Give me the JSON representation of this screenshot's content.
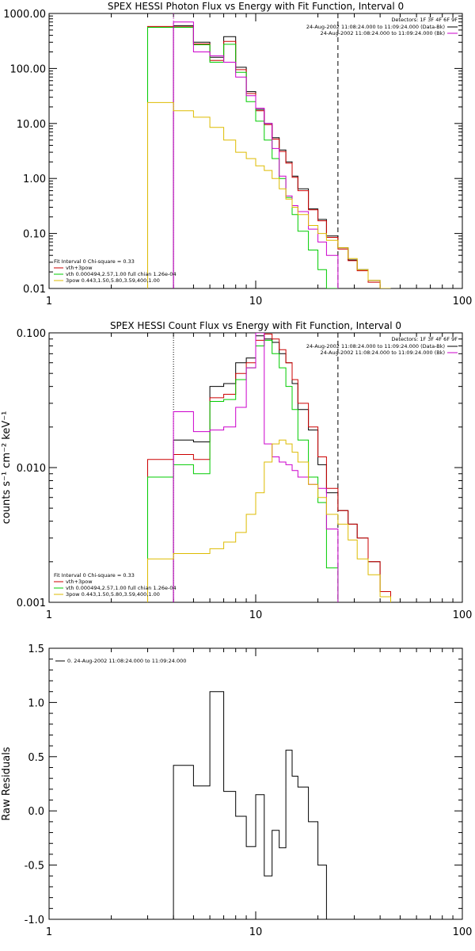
{
  "chart_data": [
    {
      "type": "line",
      "title": "SPEX HESSI Photon Flux vs Energy with Fit Function, Interval 0",
      "xlabel": "",
      "ylabel": "",
      "xscale": "log",
      "yscale": "log",
      "xlim": [
        1,
        100
      ],
      "ylim": [
        0.01,
        1000
      ],
      "x_ticks": [
        "1",
        "10",
        "100"
      ],
      "y_ticks": [
        "1000.00",
        "100.00",
        "10.00",
        "1.00",
        "0.10",
        "0.01"
      ],
      "edges": [
        3.0,
        4.0,
        5.0,
        6.0,
        7.0,
        8.0,
        9.0,
        10.0,
        11.0,
        12.0,
        13.0,
        14.0,
        15.0,
        16.0,
        18.0,
        20.0,
        22.0,
        25.0,
        28.0,
        31.0,
        35.0,
        40.0,
        45.0
      ],
      "vlines": [
        {
          "x": 4.0,
          "color": "#cc00cc",
          "dash": "dotted"
        },
        {
          "x": 25.0,
          "color": "#000000",
          "dash": "dashed"
        }
      ],
      "header": {
        "detectors": "Detectors: 1F 3F 4F 6F 9F",
        "line1": "24-Aug-2002 11:08:24.000 to 11:09:24.000 (Data-Bk)",
        "line2": "24-Aug-2002 11:08:24.000 to 11:09:24.000 (Bk)"
      },
      "header_colors": [
        "#000000",
        "#cc00cc"
      ],
      "legend_title": "Fit Interval 0   Chi-square = 0.33",
      "legend": [
        {
          "label": "vth+3pow",
          "color": "#cc0000"
        },
        {
          "label": "vth 0.000494,2.57,1.00   full chian 1.26e-04",
          "color": "#00cc00"
        },
        {
          "label": "3pow 0.443,1.50,5.80,3.59,400,1.00",
          "color": "#ddbb00"
        }
      ],
      "series": [
        {
          "color": "#000000",
          "values": [
            null,
            600,
            300,
            160,
            380,
            105,
            38,
            18,
            10,
            5.5,
            3.3,
            2.0,
            1.1,
            0.65,
            0.28,
            0.18,
            0.09,
            0.055,
            0.033,
            0.022,
            0.014,
            0.01
          ]
        },
        {
          "color": "#cc0000",
          "values": [
            580,
            570,
            280,
            140,
            310,
            95,
            35,
            17,
            9.5,
            5.2,
            3.1,
            1.9,
            1.05,
            0.6,
            0.27,
            0.17,
            0.085,
            0.052,
            0.032,
            0.021,
            0.013,
            0.009
          ]
        },
        {
          "color": "#00cc00",
          "values": [
            560,
            560,
            270,
            130,
            275,
            85,
            25,
            11,
            5.0,
            2.3,
            1.0,
            0.45,
            0.22,
            0.11,
            0.05,
            0.022,
            0.008,
            null,
            null,
            null,
            null,
            null
          ]
        },
        {
          "color": "#cc00cc",
          "values": [
            null,
            700,
            200,
            170,
            130,
            70,
            32,
            19,
            10,
            3.5,
            1.1,
            0.48,
            0.32,
            0.25,
            0.12,
            0.07,
            0.04,
            null,
            null,
            null,
            null,
            null
          ]
        },
        {
          "color": "#ddbb00",
          "values": [
            24,
            17,
            13,
            8.5,
            5.0,
            3.0,
            2.3,
            1.7,
            1.4,
            1.0,
            0.65,
            0.42,
            0.3,
            0.22,
            0.14,
            0.1,
            0.075,
            0.055,
            0.035,
            0.022,
            0.014,
            0.01
          ]
        }
      ]
    },
    {
      "type": "line",
      "title": "SPEX HESSI Count Flux vs Energy with Fit Function, Interval 0",
      "xlabel": "",
      "ylabel": "counts s⁻¹ cm⁻² keV⁻¹",
      "xscale": "log",
      "yscale": "log",
      "xlim": [
        1,
        100
      ],
      "ylim": [
        0.001,
        0.1
      ],
      "x_ticks": [
        "1",
        "10",
        "100"
      ],
      "y_ticks": [
        "0.100",
        "0.010",
        "0.001"
      ],
      "edges": [
        3.0,
        4.0,
        5.0,
        6.0,
        7.0,
        8.0,
        9.0,
        10.0,
        11.0,
        12.0,
        13.0,
        14.0,
        15.0,
        16.0,
        18.0,
        20.0,
        22.0,
        25.0,
        28.0,
        31.0,
        35.0,
        40.0,
        45.0
      ],
      "vlines": [
        {
          "x": 4.0,
          "color": "#000000",
          "dash": "dotted"
        },
        {
          "x": 25.0,
          "color": "#000000",
          "dash": "dashed"
        }
      ],
      "header": {
        "detectors": "Detectors: 1F 3F 4F 6F 9F",
        "line1": "24-Aug-2002 11:08:24.000 to 11:09:24.000 (Data-Bk)",
        "line2": "24-Aug-2002 11:08:24.000 to 11:09:24.000 (Bk)"
      },
      "header_colors": [
        "#000000",
        "#cc00cc"
      ],
      "legend_title": "Fit Interval 0   Chi-square = 0.33",
      "legend": [
        {
          "label": "vth+3pow",
          "color": "#cc0000"
        },
        {
          "label": "vth 0.000494,2.57,1.00   full chian 1.26e-04",
          "color": "#00cc00"
        },
        {
          "label": "3pow 0.443,1.50,5.80,3.59,400,1.00",
          "color": "#ddbb00"
        }
      ],
      "series": [
        {
          "color": "#000000",
          "values": [
            null,
            0.016,
            0.0155,
            0.04,
            0.042,
            0.06,
            0.065,
            0.095,
            0.09,
            0.085,
            0.07,
            0.06,
            0.042,
            0.027,
            0.019,
            0.0105,
            0.0065,
            0.0048,
            0.0038,
            0.003,
            0.002,
            0.0012
          ]
        },
        {
          "color": "#cc0000",
          "values": [
            0.0115,
            0.0125,
            0.0115,
            0.033,
            0.035,
            0.05,
            0.06,
            0.088,
            0.098,
            0.09,
            0.075,
            0.06,
            0.045,
            0.03,
            0.02,
            0.012,
            0.007,
            0.0048,
            0.0038,
            0.003,
            0.002,
            0.0012
          ]
        },
        {
          "color": "#00cc00",
          "values": [
            0.0085,
            0.0105,
            0.009,
            0.031,
            0.032,
            0.045,
            0.055,
            0.08,
            0.088,
            0.07,
            0.055,
            0.04,
            0.027,
            0.016,
            0.0085,
            0.0055,
            0.0018,
            null,
            null,
            null,
            null,
            null
          ]
        },
        {
          "color": "#cc00cc",
          "values": [
            null,
            0.026,
            0.0185,
            0.019,
            0.02,
            0.028,
            0.055,
            0.1,
            0.015,
            0.012,
            0.011,
            0.0105,
            0.0095,
            0.0085,
            0.0075,
            0.007,
            0.0035,
            null,
            null,
            null,
            null,
            null
          ]
        },
        {
          "color": "#ddbb00",
          "values": [
            0.0021,
            0.0023,
            0.0023,
            0.0025,
            0.0028,
            0.0033,
            0.0045,
            0.0065,
            0.011,
            0.015,
            0.016,
            0.015,
            0.013,
            0.011,
            0.0075,
            0.006,
            0.0045,
            0.0038,
            0.0029,
            0.0021,
            0.0016,
            0.0011
          ]
        }
      ]
    },
    {
      "type": "line",
      "title": "",
      "xlabel": "",
      "ylabel": "Raw Residuals",
      "xscale": "log",
      "yscale": "linear",
      "xlim": [
        1,
        100
      ],
      "ylim": [
        -1.0,
        1.5
      ],
      "x_ticks": [
        "1",
        "10",
        "100"
      ],
      "y_ticks": [
        "1.5",
        "1.0",
        "0.5",
        "0.0",
        "-0.5",
        "-1.0"
      ],
      "edges": [
        4.0,
        5.0,
        6.0,
        7.0,
        8.0,
        9.0,
        10.0,
        11.0,
        12.0,
        13.0,
        14.0,
        15.0,
        16.0,
        18.0,
        20.0,
        22.0,
        25.0
      ],
      "vlines": [],
      "legend": [
        {
          "label": "0. 24-Aug-2002 11:08:24.000 to 11:09:24.000",
          "color": "#000000"
        }
      ],
      "series": [
        {
          "color": "#000000",
          "values": [
            0.42,
            0.23,
            1.1,
            0.18,
            -0.05,
            -0.33,
            0.15,
            -0.6,
            -0.18,
            -0.34,
            0.56,
            0.32,
            0.22,
            -0.1,
            -0.5,
            -1.0
          ]
        }
      ]
    }
  ]
}
